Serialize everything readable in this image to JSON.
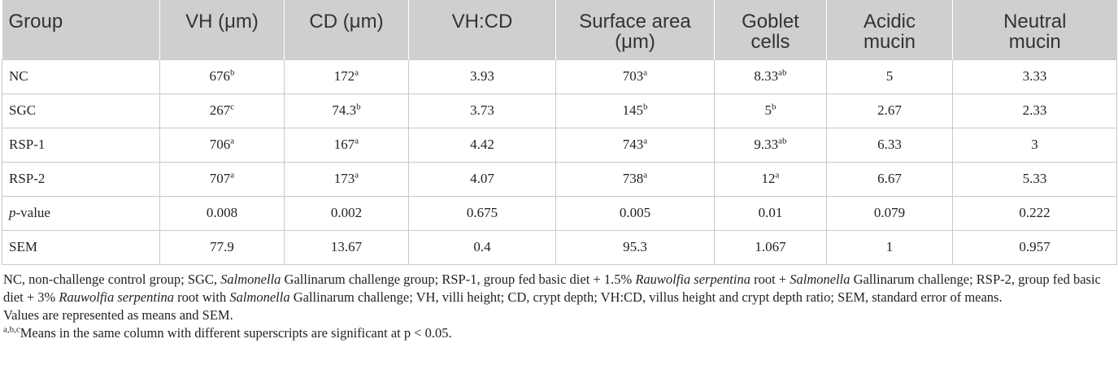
{
  "headers": [
    "Group",
    "VH (μm)",
    "CD (μm)",
    "VH:CD",
    "Surface area\n(μm)",
    "Goblet\ncells",
    "Acidic\nmucin",
    "Neutral\nmucin"
  ],
  "rows": [
    [
      {
        "v": "NC"
      },
      {
        "v": "676",
        "s": "b"
      },
      {
        "v": "172",
        "s": "a"
      },
      {
        "v": "3.93"
      },
      {
        "v": "703",
        "s": "a"
      },
      {
        "v": "8.33",
        "s": "ab"
      },
      {
        "v": "5"
      },
      {
        "v": "3.33"
      }
    ],
    [
      {
        "v": "SGC"
      },
      {
        "v": "267",
        "s": "c"
      },
      {
        "v": "74.3",
        "s": "b"
      },
      {
        "v": "3.73"
      },
      {
        "v": "145",
        "s": "b"
      },
      {
        "v": "5",
        "s": "b"
      },
      {
        "v": "2.67"
      },
      {
        "v": "2.33"
      }
    ],
    [
      {
        "v": "RSP-1"
      },
      {
        "v": "706",
        "s": "a"
      },
      {
        "v": "167",
        "s": "a"
      },
      {
        "v": "4.42"
      },
      {
        "v": "743",
        "s": "a"
      },
      {
        "v": "9.33",
        "s": "ab"
      },
      {
        "v": "6.33"
      },
      {
        "v": "3"
      }
    ],
    [
      {
        "v": "RSP-2"
      },
      {
        "v": "707",
        "s": "a"
      },
      {
        "v": "173",
        "s": "a"
      },
      {
        "v": "4.07"
      },
      {
        "v": "738",
        "s": "a"
      },
      {
        "v": "12",
        "s": "a"
      },
      {
        "v": "6.67"
      },
      {
        "v": "5.33"
      }
    ],
    [
      {
        "v": "p",
        "i": true,
        "tail": "-value"
      },
      {
        "v": "0.008"
      },
      {
        "v": "0.002"
      },
      {
        "v": "0.675"
      },
      {
        "v": "0.005"
      },
      {
        "v": "0.01"
      },
      {
        "v": "0.079"
      },
      {
        "v": "0.222"
      }
    ],
    [
      {
        "v": "SEM"
      },
      {
        "v": "77.9"
      },
      {
        "v": "13.67"
      },
      {
        "v": "0.4"
      },
      {
        "v": "95.3"
      },
      {
        "v": "1.067"
      },
      {
        "v": "1"
      },
      {
        "v": "0.957"
      }
    ]
  ],
  "footnotes": {
    "abbrev": [
      {
        "t": "NC, non-challenge control group; SGC, "
      },
      {
        "t": "Salmonella",
        "i": true
      },
      {
        "t": " Gallinarum challenge group; RSP-1, group fed basic diet + 1.5% "
      },
      {
        "t": "Rauwolfia serpentina",
        "i": true
      },
      {
        "t": " root + "
      },
      {
        "t": "Salmonella",
        "i": true
      },
      {
        "t": " Gallinarum challenge; RSP-2, group fed basic diet + 3% "
      },
      {
        "t": "Rauwolfia serpentina",
        "i": true
      },
      {
        "t": " root with "
      },
      {
        "t": "Salmonella",
        "i": true
      },
      {
        "t": " Gallinarum challenge; VH, villi height; CD, crypt depth; VH:CD, villus height and crypt depth ratio; SEM, standard error of means."
      }
    ],
    "values_note": "Values are represented as means and SEM.",
    "sig_marker": "a,b,c",
    "sig_note": "Means in the same column with different superscripts are significant at p < 0.05."
  }
}
